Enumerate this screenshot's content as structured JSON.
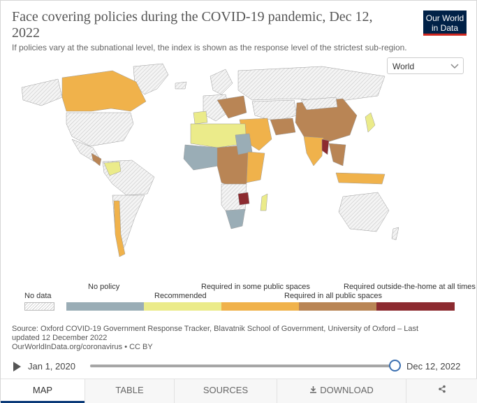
{
  "header": {
    "title": "Face covering policies during the COVID-19 pandemic, Dec 12, 2022",
    "subtitle": "If policies vary at the subnational level, the index is shown as the response level of the strictest sub-region.",
    "logo_line1": "Our World",
    "logo_line2": "in Data"
  },
  "region_select": {
    "value": "World",
    "icon": "chevron-down-icon"
  },
  "legend": {
    "no_data": "No data",
    "categories": [
      {
        "label": "No policy",
        "color": "#9aadb6"
      },
      {
        "label": "Recommended",
        "color": "#ebeb8a"
      },
      {
        "label": "Required in some public spaces",
        "color": "#f0b24b"
      },
      {
        "label": "Required in all public spaces",
        "color": "#b98555"
      },
      {
        "label": "Required outside-the-home at all times",
        "color": "#8c2b30"
      }
    ]
  },
  "source": {
    "line1": "Source: Oxford COVID-19 Government Response Tracker, Blavatnik School of Government, University of Oxford – Last",
    "line2": "updated 12 December 2022",
    "line3": "OurWorldInData.org/coronavirus • CC BY"
  },
  "timeline": {
    "start": "Jan 1, 2020",
    "end": "Dec 12, 2022",
    "position": 1.0
  },
  "tabs": {
    "map": "MAP",
    "table": "TABLE",
    "sources": "SOURCES",
    "download": "DOWNLOAD",
    "share_icon": "share-icon",
    "download_icon": "download-icon"
  }
}
